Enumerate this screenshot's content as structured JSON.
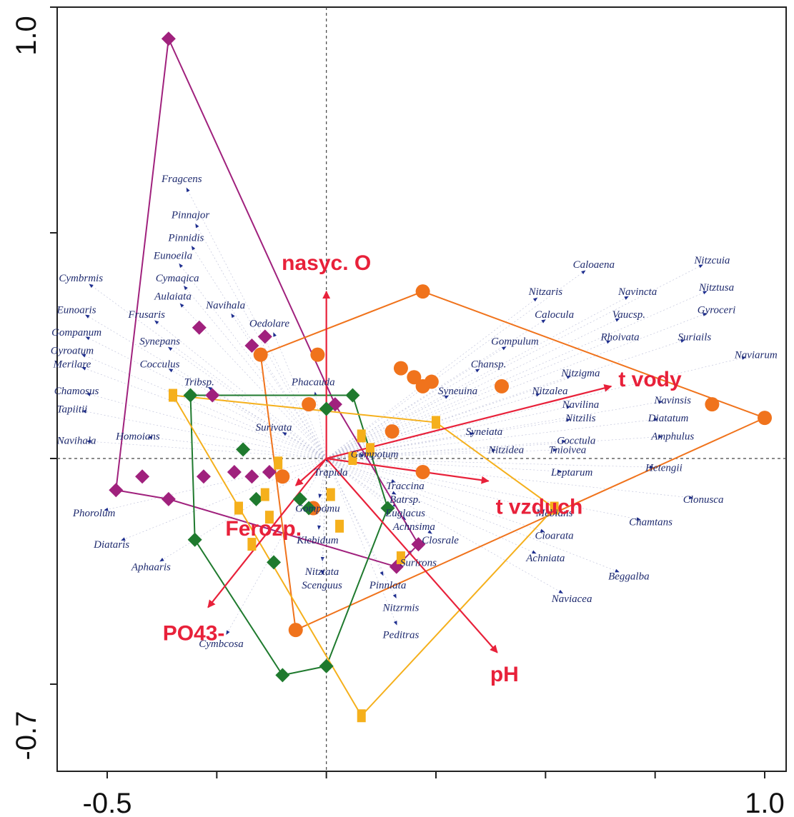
{
  "chart_data": {
    "type": "scatter",
    "title": "",
    "xlabel": "",
    "ylabel": "",
    "xlim": [
      -0.5,
      1.0
    ],
    "ylim": [
      -0.7,
      1.0
    ],
    "x_tick_labels": [
      "-0.5",
      "1.0"
    ],
    "y_tick_labels": [
      "1.0",
      "-0.7"
    ],
    "x_ticks": [
      -0.5,
      -0.25,
      0,
      0.25,
      0.5,
      0.75,
      1.0
    ],
    "y_ticks": [
      1.0,
      0.5,
      0,
      -0.5
    ],
    "grid": false,
    "reference_lines": "dashed lines at x=0 and y=0",
    "colors": {
      "env_arrow": "#e8213a",
      "species_arrow": "#1f2f8f",
      "group_purple": "#a0217d",
      "group_orange": "#f0731c",
      "group_green": "#1f7a2e",
      "group_yellow": "#f5b01c"
    },
    "environmental_variables": [
      {
        "name": "nasyc. O",
        "x": 0.0,
        "y": 0.37
      },
      {
        "name": "t vody",
        "x": 0.65,
        "y": 0.16
      },
      {
        "name": "t vzduch",
        "x": 0.37,
        "y": -0.05
      },
      {
        "name": "pH",
        "x": 0.39,
        "y": -0.43
      },
      {
        "name": "Ferozp.",
        "x": -0.07,
        "y": -0.06
      },
      {
        "name": "PO43-",
        "x": -0.27,
        "y": -0.33
      }
    ],
    "species": [
      {
        "name": "Fragcens",
        "x": -0.33,
        "y": 0.62
      },
      {
        "name": "Pinnajor",
        "x": -0.31,
        "y": 0.54
      },
      {
        "name": "Pinnidis",
        "x": -0.32,
        "y": 0.49
      },
      {
        "name": "Eunoeila",
        "x": -0.35,
        "y": 0.45
      },
      {
        "name": "Cymbrmis",
        "x": -0.56,
        "y": 0.4
      },
      {
        "name": "Cymaqica",
        "x": -0.34,
        "y": 0.4
      },
      {
        "name": "Aulaiata",
        "x": -0.35,
        "y": 0.36
      },
      {
        "name": "Navihala",
        "x": -0.23,
        "y": 0.34
      },
      {
        "name": "Eunoaris",
        "x": -0.57,
        "y": 0.33
      },
      {
        "name": "Frusaris",
        "x": -0.41,
        "y": 0.32
      },
      {
        "name": "Oedolare",
        "x": -0.13,
        "y": 0.3
      },
      {
        "name": "Gompanum",
        "x": -0.57,
        "y": 0.28
      },
      {
        "name": "Synepans",
        "x": -0.38,
        "y": 0.26
      },
      {
        "name": "Gyroatum",
        "x": -0.58,
        "y": 0.24
      },
      {
        "name": "Cocculus",
        "x": -0.38,
        "y": 0.21
      },
      {
        "name": "Merilare",
        "x": -0.58,
        "y": 0.21
      },
      {
        "name": "Tribsp.",
        "x": -0.29,
        "y": 0.17
      },
      {
        "name": "Chamosus",
        "x": -0.57,
        "y": 0.15
      },
      {
        "name": "Tapiitii",
        "x": -0.58,
        "y": 0.11
      },
      {
        "name": "Phacauda",
        "x": -0.03,
        "y": 0.17
      },
      {
        "name": "Navihala",
        "x": -0.57,
        "y": 0.04
      },
      {
        "name": "Homoians",
        "x": -0.43,
        "y": 0.05
      },
      {
        "name": "Surivata",
        "x": -0.12,
        "y": 0.07
      },
      {
        "name": "Gompotum",
        "x": 0.11,
        "y": 0.01
      },
      {
        "name": "Trapida",
        "x": 0.01,
        "y": -0.03
      },
      {
        "name": "Traccina",
        "x": 0.18,
        "y": -0.06
      },
      {
        "name": "Batrsp.",
        "x": 0.18,
        "y": -0.09
      },
      {
        "name": "Gompomu",
        "x": -0.02,
        "y": -0.11
      },
      {
        "name": "Euglacus",
        "x": 0.18,
        "y": -0.12
      },
      {
        "name": "Achnsima",
        "x": 0.2,
        "y": -0.15
      },
      {
        "name": "Klebidum",
        "x": -0.02,
        "y": -0.18
      },
      {
        "name": "Closrale",
        "x": 0.26,
        "y": -0.18
      },
      {
        "name": "Surirons",
        "x": 0.21,
        "y": -0.23
      },
      {
        "name": "Phorolum",
        "x": -0.53,
        "y": -0.12
      },
      {
        "name": "Diataris",
        "x": -0.49,
        "y": -0.19
      },
      {
        "name": "Aphaaris",
        "x": -0.4,
        "y": -0.24
      },
      {
        "name": "Nitztata",
        "x": -0.01,
        "y": -0.25
      },
      {
        "name": "Scenguus",
        "x": -0.01,
        "y": -0.28
      },
      {
        "name": "Pinnlata",
        "x": 0.14,
        "y": -0.28
      },
      {
        "name": "Nitzrmis",
        "x": 0.17,
        "y": -0.33
      },
      {
        "name": "Peditras",
        "x": 0.17,
        "y": -0.39
      },
      {
        "name": "Cymbcosa",
        "x": -0.24,
        "y": -0.41
      },
      {
        "name": "Caloaena",
        "x": 0.61,
        "y": 0.43
      },
      {
        "name": "Nitzcuia",
        "x": 0.88,
        "y": 0.44
      },
      {
        "name": "Nitzaris",
        "x": 0.5,
        "y": 0.37
      },
      {
        "name": "Navincta",
        "x": 0.71,
        "y": 0.37
      },
      {
        "name": "Nitztusa",
        "x": 0.89,
        "y": 0.38
      },
      {
        "name": "Calocula",
        "x": 0.52,
        "y": 0.32
      },
      {
        "name": "Vaucsp.",
        "x": 0.69,
        "y": 0.32
      },
      {
        "name": "Gyroceri",
        "x": 0.89,
        "y": 0.33
      },
      {
        "name": "Gompulum",
        "x": 0.43,
        "y": 0.26
      },
      {
        "name": "Rhoivata",
        "x": 0.67,
        "y": 0.27
      },
      {
        "name": "Suriails",
        "x": 0.84,
        "y": 0.27
      },
      {
        "name": "Naviarum",
        "x": 0.98,
        "y": 0.23
      },
      {
        "name": "Chansp.",
        "x": 0.37,
        "y": 0.21
      },
      {
        "name": "Nitzigma",
        "x": 0.58,
        "y": 0.19
      },
      {
        "name": "Nitzalea",
        "x": 0.51,
        "y": 0.15
      },
      {
        "name": "Syneuina",
        "x": 0.3,
        "y": 0.15
      },
      {
        "name": "Navilina",
        "x": 0.58,
        "y": 0.12
      },
      {
        "name": "Navinsis",
        "x": 0.79,
        "y": 0.13
      },
      {
        "name": "Nitzilis",
        "x": 0.58,
        "y": 0.09
      },
      {
        "name": "Diatatum",
        "x": 0.78,
        "y": 0.09
      },
      {
        "name": "Syneiata",
        "x": 0.36,
        "y": 0.06
      },
      {
        "name": "Amphulus",
        "x": 0.79,
        "y": 0.05
      },
      {
        "name": "Cocctula",
        "x": 0.57,
        "y": 0.04
      },
      {
        "name": "Nitzidea",
        "x": 0.41,
        "y": 0.02
      },
      {
        "name": "Tnioivea",
        "x": 0.55,
        "y": 0.02
      },
      {
        "name": "Leptarum",
        "x": 0.56,
        "y": -0.03
      },
      {
        "name": "Hetengii",
        "x": 0.77,
        "y": -0.02
      },
      {
        "name": "Clonusca",
        "x": 0.86,
        "y": -0.09
      },
      {
        "name": "Mebians",
        "x": 0.52,
        "y": -0.12
      },
      {
        "name": "Chamtans",
        "x": 0.74,
        "y": -0.14
      },
      {
        "name": "Cioarata",
        "x": 0.52,
        "y": -0.17
      },
      {
        "name": "Achniata",
        "x": 0.5,
        "y": -0.22
      },
      {
        "name": "Beggalba",
        "x": 0.69,
        "y": -0.26
      },
      {
        "name": "Naviacea",
        "x": 0.56,
        "y": -0.31
      }
    ],
    "series": [
      {
        "color": "#a0217d",
        "marker": "diamond",
        "points": [
          [
            -0.36,
            0.93
          ],
          [
            -0.29,
            0.29
          ],
          [
            -0.14,
            0.27
          ],
          [
            -0.17,
            0.25
          ],
          [
            -0.26,
            0.14
          ],
          [
            -0.42,
            -0.04
          ],
          [
            -0.48,
            -0.07
          ],
          [
            -0.36,
            -0.09
          ],
          [
            -0.21,
            -0.03
          ],
          [
            -0.17,
            -0.04
          ],
          [
            -0.28,
            -0.04
          ],
          [
            -0.13,
            -0.03
          ],
          [
            0.02,
            0.12
          ],
          [
            0.21,
            -0.19
          ],
          [
            0.16,
            -0.24
          ]
        ],
        "hull": [
          [
            -0.36,
            0.93
          ],
          [
            0.02,
            0.12
          ],
          [
            0.21,
            -0.19
          ],
          [
            0.16,
            -0.24
          ],
          [
            -0.36,
            -0.09
          ],
          [
            -0.48,
            -0.07
          ]
        ]
      },
      {
        "color": "#f0731c",
        "marker": "circle",
        "points": [
          [
            0.22,
            0.37
          ],
          [
            -0.15,
            0.23
          ],
          [
            -0.02,
            0.23
          ],
          [
            0.17,
            0.2
          ],
          [
            0.24,
            0.17
          ],
          [
            0.2,
            0.18
          ],
          [
            0.22,
            0.16
          ],
          [
            0.4,
            0.16
          ],
          [
            0.88,
            0.12
          ],
          [
            1.0,
            0.09
          ],
          [
            0.15,
            0.06
          ],
          [
            -0.04,
            0.12
          ],
          [
            -0.1,
            -0.04
          ],
          [
            -0.03,
            -0.11
          ],
          [
            0.22,
            -0.03
          ],
          [
            -0.07,
            -0.38
          ]
        ],
        "hull": [
          [
            0.22,
            0.37
          ],
          [
            1.0,
            0.09
          ],
          [
            -0.07,
            -0.38
          ],
          [
            -0.15,
            0.23
          ]
        ]
      },
      {
        "color": "#1f7a2e",
        "marker": "diamond",
        "points": [
          [
            -0.31,
            0.14
          ],
          [
            0.06,
            0.14
          ],
          [
            0.0,
            0.11
          ],
          [
            -0.19,
            0.02
          ],
          [
            -0.16,
            -0.09
          ],
          [
            -0.06,
            -0.09
          ],
          [
            -0.04,
            -0.11
          ],
          [
            0.14,
            -0.11
          ],
          [
            -0.3,
            -0.18
          ],
          [
            -0.12,
            -0.23
          ],
          [
            -0.1,
            -0.48
          ],
          [
            0.0,
            -0.46
          ]
        ],
        "hull": [
          [
            -0.31,
            0.14
          ],
          [
            0.06,
            0.14
          ],
          [
            0.14,
            -0.11
          ],
          [
            0.0,
            -0.46
          ],
          [
            -0.1,
            -0.48
          ],
          [
            -0.3,
            -0.18
          ]
        ]
      },
      {
        "color": "#f5b01c",
        "marker": "square",
        "points": [
          [
            -0.35,
            0.14
          ],
          [
            0.25,
            0.08
          ],
          [
            0.08,
            0.05
          ],
          [
            0.1,
            0.02
          ],
          [
            0.06,
            0.0
          ],
          [
            -0.11,
            -0.01
          ],
          [
            -0.14,
            -0.08
          ],
          [
            0.01,
            -0.08
          ],
          [
            -0.2,
            -0.11
          ],
          [
            -0.13,
            -0.13
          ],
          [
            0.03,
            -0.15
          ],
          [
            -0.17,
            -0.19
          ],
          [
            0.17,
            -0.22
          ],
          [
            0.08,
            -0.57
          ],
          [
            0.52,
            -0.11
          ]
        ],
        "hull": [
          [
            -0.35,
            0.14
          ],
          [
            0.25,
            0.08
          ],
          [
            0.52,
            -0.11
          ],
          [
            0.08,
            -0.57
          ],
          [
            -0.35,
            0.14
          ]
        ]
      }
    ]
  }
}
